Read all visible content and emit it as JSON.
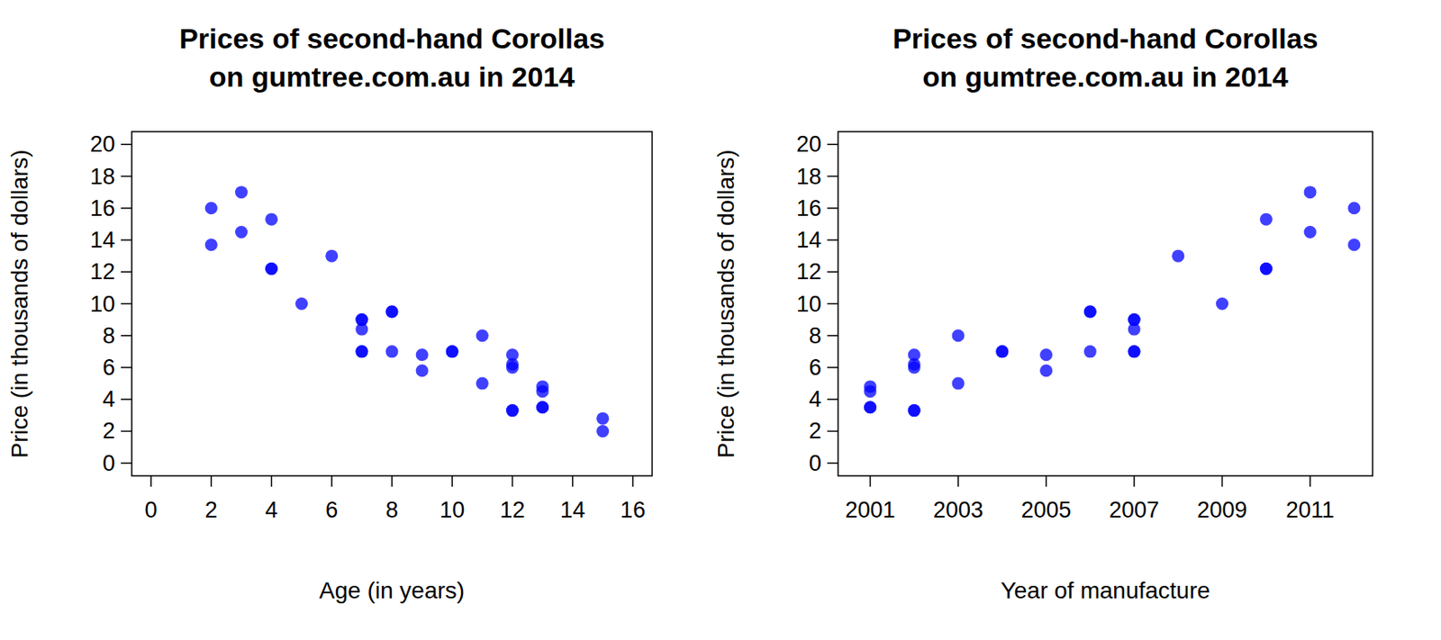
{
  "chart_data": [
    {
      "type": "scatter",
      "title": "Prices of second-hand Corollas\non gumtree.com.au in 2014",
      "x_label": "Age (in years)",
      "y_label": "Price (in thousands of dollars)",
      "x": [
        2,
        2,
        3,
        3,
        4,
        4,
        4,
        5,
        6,
        7,
        7,
        7,
        7,
        7,
        8,
        8,
        8,
        9,
        9,
        10,
        10,
        11,
        11,
        12,
        12,
        12,
        12,
        12,
        13,
        13,
        13,
        13,
        15,
        15
      ],
      "values": [
        16,
        13.7,
        17,
        14.5,
        15.3,
        12.2,
        12.2,
        10,
        13,
        9,
        9,
        8.4,
        7,
        7,
        9.5,
        9.5,
        7,
        6.8,
        5.8,
        7,
        7,
        8,
        5,
        6.8,
        6.2,
        6,
        3.3,
        3.3,
        4.8,
        4.5,
        3.5,
        3.5,
        2.8,
        2
      ],
      "color": "#0000ff",
      "marker": "circle",
      "grid": false,
      "xlim": [
        -0.64,
        16.64
      ],
      "xticks": [
        0,
        2,
        4,
        6,
        8,
        10,
        12,
        14,
        16
      ],
      "ylim": [
        -0.8,
        20.8
      ],
      "yticks": [
        0,
        2,
        4,
        6,
        8,
        10,
        12,
        14,
        16,
        18,
        20
      ]
    },
    {
      "type": "scatter",
      "title": "Prices of second-hand Corollas\non gumtree.com.au in 2014",
      "x_label": "Year of manufacture",
      "y_label": "Price (in thousands of dollars)",
      "x": [
        2012,
        2012,
        2011,
        2011,
        2010,
        2010,
        2010,
        2009,
        2008,
        2007,
        2007,
        2007,
        2007,
        2007,
        2006,
        2006,
        2006,
        2005,
        2005,
        2004,
        2004,
        2003,
        2003,
        2002,
        2002,
        2002,
        2002,
        2002,
        2001,
        2001,
        2001,
        2001
      ],
      "values": [
        16,
        13.7,
        17,
        14.5,
        15.3,
        12.2,
        12.2,
        10,
        13,
        9,
        9,
        8.4,
        7,
        7,
        9.5,
        9.5,
        7,
        6.8,
        5.8,
        7,
        7,
        8,
        5,
        6.8,
        6.2,
        6,
        3.3,
        3.3,
        4.8,
        4.5,
        3.5,
        3.5
      ],
      "color": "#0000ff",
      "marker": "circle",
      "grid": false,
      "xlim": [
        2000.27,
        2012.42
      ],
      "xticks": [
        2001,
        2003,
        2005,
        2007,
        2009,
        2011
      ],
      "ylim": [
        -0.8,
        20.8
      ],
      "yticks": [
        0,
        2,
        4,
        6,
        8,
        10,
        12,
        14,
        16,
        18,
        20
      ]
    }
  ]
}
